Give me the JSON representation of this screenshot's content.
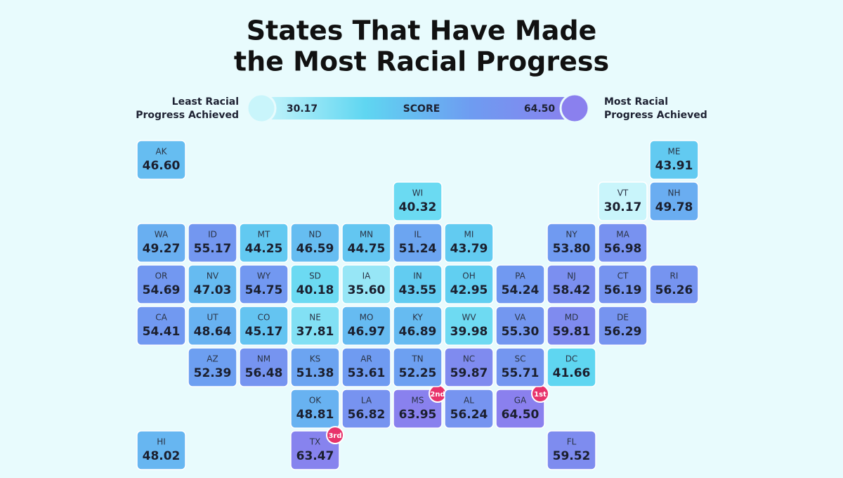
{
  "chart_data": {
    "type": "choropleth",
    "title": [
      "States That Have Made",
      "the Most Racial Progress"
    ],
    "color_scale": {
      "min": 30.17,
      "max": 64.5,
      "min_label": "30.17",
      "max_label": "64.50",
      "label": "SCORE",
      "low_text": [
        "Least Racial",
        "Progress Achieved"
      ],
      "high_text": [
        "Most Racial",
        "Progress Achieved"
      ],
      "colors": [
        "#c9f5fb",
        "#5fd6f1",
        "#6e9cf1",
        "#8a80ee"
      ]
    },
    "categories": [
      "WA",
      "OR",
      "CA",
      "ID",
      "NV",
      "MT",
      "WY",
      "UT",
      "AZ",
      "CO",
      "NM",
      "ND",
      "SD",
      "NE",
      "KS",
      "OK",
      "TX",
      "MN",
      "IA",
      "MO",
      "AR",
      "LA",
      "WI",
      "IL",
      "MS",
      "MI",
      "IN",
      "KY",
      "TN",
      "AL",
      "OH",
      "WV",
      "GA",
      "FL",
      "SC",
      "NC",
      "VA",
      "PA",
      "NY",
      "VT",
      "NH",
      "ME",
      "MA",
      "RI",
      "CT",
      "NJ",
      "DC",
      "DE",
      "MD",
      "AK",
      "HI"
    ],
    "values": [
      49.27,
      54.69,
      54.41,
      55.17,
      47.03,
      44.25,
      54.75,
      48.64,
      52.39,
      45.17,
      56.48,
      46.59,
      40.18,
      37.81,
      51.38,
      48.81,
      63.47,
      44.75,
      35.6,
      46.97,
      53.61,
      56.82,
      40.32,
      51.24,
      63.95,
      43.79,
      43.55,
      46.89,
      52.25,
      56.24,
      42.95,
      39.98,
      64.5,
      59.52,
      55.71,
      59.87,
      55.3,
      54.24,
      53.8,
      30.17,
      49.78,
      43.91,
      56.98,
      56.26,
      56.19,
      58.42,
      41.66,
      56.29,
      59.81,
      46.6,
      48.02
    ],
    "value_labels": [
      "49.27",
      "54.69",
      "54.41",
      "55.17",
      "47.03",
      "44.25",
      "54.75",
      "48.64",
      "52.39",
      "45.17",
      "56.48",
      "46.59",
      "40.18",
      "37.81",
      "51.38",
      "48.81",
      "63.47",
      "44.75",
      "35.60",
      "46.97",
      "53.61",
      "56.82",
      "40.32",
      "51.24",
      "63.95",
      "43.79",
      "43.55",
      "46.89",
      "52.25",
      "56.24",
      "42.95",
      "39.98",
      "64.50",
      "59.52",
      "55.71",
      "59.87",
      "55.30",
      "54.24",
      "53.80",
      "30.17",
      "49.78",
      "43.91",
      "56.98",
      "56.26",
      "56.19",
      "58.42",
      "41.66",
      "56.29",
      "59.81",
      "46.60",
      "48.02"
    ],
    "ranks": [
      null,
      null,
      null,
      null,
      null,
      null,
      null,
      null,
      null,
      null,
      null,
      null,
      null,
      null,
      null,
      null,
      "3rd",
      null,
      null,
      null,
      null,
      null,
      null,
      null,
      "2nd",
      null,
      null,
      null,
      null,
      null,
      null,
      null,
      "1st",
      null,
      null,
      null,
      null,
      null,
      null,
      null,
      null,
      null,
      null,
      null,
      null,
      null,
      null,
      null,
      null,
      null,
      null
    ]
  }
}
